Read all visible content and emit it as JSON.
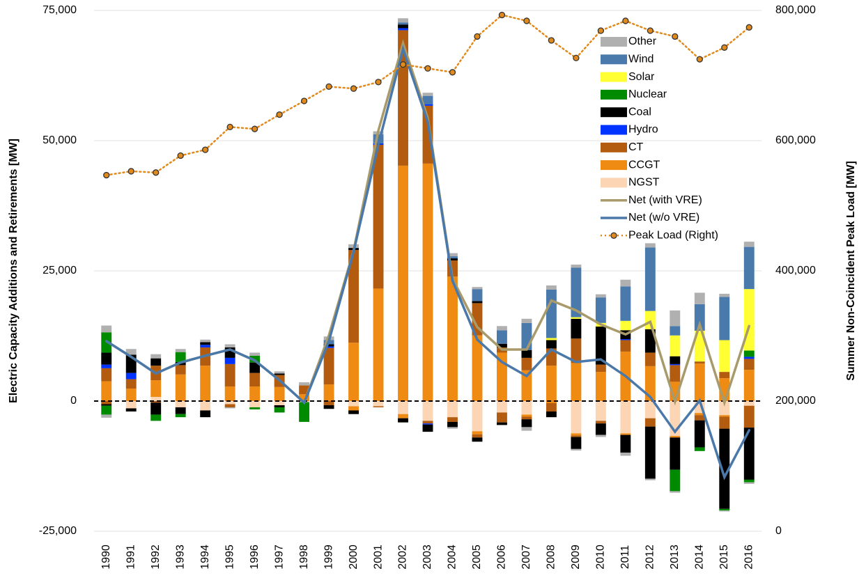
{
  "chart_data": {
    "type": "stacked-bar-line",
    "y_label": "Electric Capacity Additions and Retirements [MW]",
    "y2_label": "Summer Non-Coincident Peak Load [MW]",
    "categories": [
      "1990",
      "1991",
      "1992",
      "1993",
      "1994",
      "1995",
      "1996",
      "1997",
      "1998",
      "1999",
      "2000",
      "2001",
      "2002",
      "2003",
      "2004",
      "2005",
      "2006",
      "2007",
      "2008",
      "2009",
      "2010",
      "2011",
      "2012",
      "2013",
      "2014",
      "2015",
      "2016"
    ],
    "ylim": [
      -25000,
      75000
    ],
    "yticks": [
      {
        "value": -25000,
        "label": "-25,000"
      },
      0,
      {
        "value": 25000,
        "label": "25,000"
      },
      {
        "value": 50000,
        "label": "50,000"
      },
      {
        "value": 75000,
        "label": "75,000"
      }
    ],
    "y2lim": [
      0,
      800000
    ],
    "y2ticks": [
      0,
      {
        "value": 200000,
        "label": "200,000"
      },
      {
        "value": 400000,
        "label": "400,000"
      },
      {
        "value": 600000,
        "label": "600,000"
      },
      {
        "value": 800000,
        "label": "800,000"
      }
    ],
    "grid": true,
    "legend": "upper right",
    "series": [
      {
        "name": "Other",
        "color": "#b0b0b0",
        "values": [
          1300,
          1100,
          800,
          600,
          500,
          600,
          600,
          400,
          600,
          700,
          700,
          600,
          800,
          600,
          600,
          400,
          800,
          800,
          800,
          600,
          600,
          1300,
          800,
          3000,
          2200,
          600,
          1000
        ],
        "retirements": [
          -600,
          0,
          0,
          0,
          0,
          -200,
          0,
          0,
          0,
          0,
          0,
          0,
          0,
          0,
          -300,
          0,
          0,
          -700,
          0,
          -300,
          -400,
          -600,
          -300,
          -300,
          0,
          -200,
          -300
        ]
      },
      {
        "name": "Wind",
        "color": "#4a7aab",
        "values": [
          0,
          0,
          0,
          0,
          0,
          0,
          0,
          0,
          0,
          800,
          0,
          1700,
          400,
          1600,
          400,
          2300,
          2600,
          5200,
          9300,
          9500,
          4900,
          6600,
          12200,
          1800,
          5100,
          8300,
          8100
        ],
        "retirements": [
          0,
          0,
          0,
          0,
          0,
          0,
          0,
          0,
          0,
          0,
          0,
          0,
          0,
          0,
          0,
          0,
          0,
          0,
          0,
          0,
          0,
          0,
          0,
          0,
          0,
          0,
          0
        ]
      },
      {
        "name": "Solar",
        "color": "#ffff33",
        "values": [
          0,
          0,
          0,
          0,
          0,
          0,
          0,
          0,
          0,
          0,
          0,
          0,
          0,
          0,
          0,
          0,
          0,
          0,
          400,
          300,
          700,
          1800,
          3500,
          4000,
          5900,
          6100,
          11800
        ],
        "retirements": [
          0,
          0,
          0,
          0,
          0,
          0,
          0,
          0,
          0,
          0,
          0,
          0,
          0,
          0,
          0,
          0,
          0,
          0,
          0,
          0,
          0,
          0,
          0,
          0,
          0,
          0,
          0
        ]
      },
      {
        "name": "Nuclear",
        "color": "#008a00",
        "values": [
          3900,
          0,
          0,
          1900,
          0,
          0,
          1300,
          0,
          0,
          0,
          0,
          0,
          0,
          0,
          0,
          0,
          0,
          0,
          0,
          0,
          0,
          0,
          0,
          0,
          0,
          0,
          1200
        ],
        "retirements": [
          -1700,
          0,
          -1200,
          -600,
          0,
          0,
          -400,
          -1000,
          -3800,
          0,
          0,
          0,
          0,
          0,
          0,
          0,
          0,
          0,
          0,
          0,
          0,
          0,
          0,
          -4100,
          -700,
          -300,
          -500
        ]
      },
      {
        "name": "Coal",
        "color": "#000000",
        "values": [
          2300,
          3500,
          1400,
          600,
          500,
          2000,
          2000,
          300,
          0,
          400,
          400,
          0,
          700,
          0,
          400,
          400,
          700,
          1500,
          1600,
          3800,
          7300,
          1700,
          4500,
          1500,
          0,
          0,
          0
        ],
        "retirements": [
          -300,
          -600,
          -2300,
          -1300,
          -1300,
          0,
          0,
          -400,
          0,
          -700,
          -700,
          0,
          -800,
          -1400,
          -1000,
          -800,
          -500,
          -1500,
          -1100,
          -2300,
          -2200,
          -3400,
          -10000,
          -6200,
          -5200,
          -15400,
          -10000
        ]
      },
      {
        "name": "Hydro",
        "color": "#0033ff",
        "values": [
          700,
          1200,
          0,
          0,
          500,
          1200,
          0,
          0,
          0,
          300,
          0,
          300,
          400,
          300,
          0,
          0,
          0,
          0,
          0,
          0,
          0,
          200,
          0,
          200,
          0,
          0,
          400
        ],
        "retirements": [
          0,
          0,
          0,
          0,
          0,
          0,
          0,
          0,
          0,
          0,
          0,
          0,
          0,
          -200,
          0,
          0,
          0,
          0,
          0,
          0,
          0,
          0,
          0,
          0,
          0,
          0,
          0
        ]
      },
      {
        "name": "CT",
        "color": "#b35c0f",
        "values": [
          2500,
          1800,
          2800,
          1800,
          3500,
          4300,
          2600,
          2300,
          1700,
          7000,
          17800,
          27600,
          26000,
          11100,
          3100,
          6200,
          1000,
          2400,
          3300,
          4700,
          1400,
          2200,
          2600,
          3200,
          400,
          1200,
          2100
        ],
        "retirements": [
          -600,
          0,
          -300,
          0,
          0,
          -600,
          0,
          0,
          0,
          -800,
          0,
          -200,
          0,
          -500,
          -900,
          -600,
          -1900,
          -500,
          -1600,
          -300,
          -500,
          0,
          -1600,
          0,
          -1000,
          -2300,
          -4200
        ]
      },
      {
        "name": "CCGT",
        "color": "#ef8a12",
        "values": [
          3800,
          2400,
          3200,
          5100,
          6800,
          2800,
          2800,
          2700,
          1300,
          3200,
          11200,
          21600,
          45200,
          45600,
          23900,
          12600,
          9300,
          5900,
          6800,
          7300,
          5600,
          9500,
          6700,
          3700,
          7200,
          4400,
          6000
        ],
        "retirements": [
          0,
          0,
          0,
          0,
          0,
          0,
          0,
          0,
          0,
          0,
          -800,
          0,
          -800,
          0,
          0,
          -600,
          0,
          -400,
          -400,
          -400,
          0,
          -300,
          0,
          -300,
          -400,
          -300,
          0
        ]
      },
      {
        "name": "NGST",
        "color": "#fcd5b5",
        "values": [
          0,
          0,
          800,
          0,
          0,
          0,
          0,
          0,
          0,
          0,
          0,
          0,
          0,
          0,
          0,
          0,
          0,
          0,
          0,
          0,
          0,
          0,
          0,
          0,
          0,
          0,
          0
        ],
        "retirements": [
          0,
          -1400,
          0,
          -1200,
          -1800,
          -600,
          -1200,
          -800,
          -200,
          0,
          -1000,
          -1000,
          -2500,
          -3800,
          -3100,
          -5800,
          -2200,
          -2600,
          0,
          -6200,
          -3800,
          -6200,
          -3300,
          -6700,
          -2300,
          -2700,
          -900
        ]
      }
    ],
    "lines": [
      {
        "name": "Net (with VRE)",
        "color": "#a89a6a",
        "values": [
          11500,
          8500,
          5300,
          7400,
          8700,
          9900,
          7800,
          4000,
          -300,
          12600,
          28900,
          51900,
          68700,
          54300,
          23500,
          14200,
          9900,
          9900,
          19300,
          17400,
          14700,
          12800,
          15200,
          -100,
          14700,
          -300,
          14400
        ]
      },
      {
        "name": "Net (w/o VRE)",
        "color": "#4a78a8",
        "values": [
          11500,
          8500,
          5300,
          7400,
          8700,
          9900,
          7800,
          4000,
          -300,
          11500,
          28700,
          49200,
          67600,
          53600,
          23100,
          11800,
          7500,
          4800,
          9900,
          7500,
          8000,
          4800,
          800,
          -5900,
          100,
          -14600,
          -5600
        ]
      },
      {
        "name": "Peak Load (Right)",
        "color": "#e08a1e",
        "axis": "y2",
        "values": [
          547000,
          553000,
          551000,
          577000,
          586000,
          621000,
          618000,
          640000,
          661000,
          683000,
          680000,
          690000,
          717000,
          711000,
          705000,
          760000,
          793000,
          784000,
          754000,
          727000,
          769000,
          784000,
          769000,
          760000,
          725000,
          743000,
          774000
        ]
      }
    ]
  }
}
